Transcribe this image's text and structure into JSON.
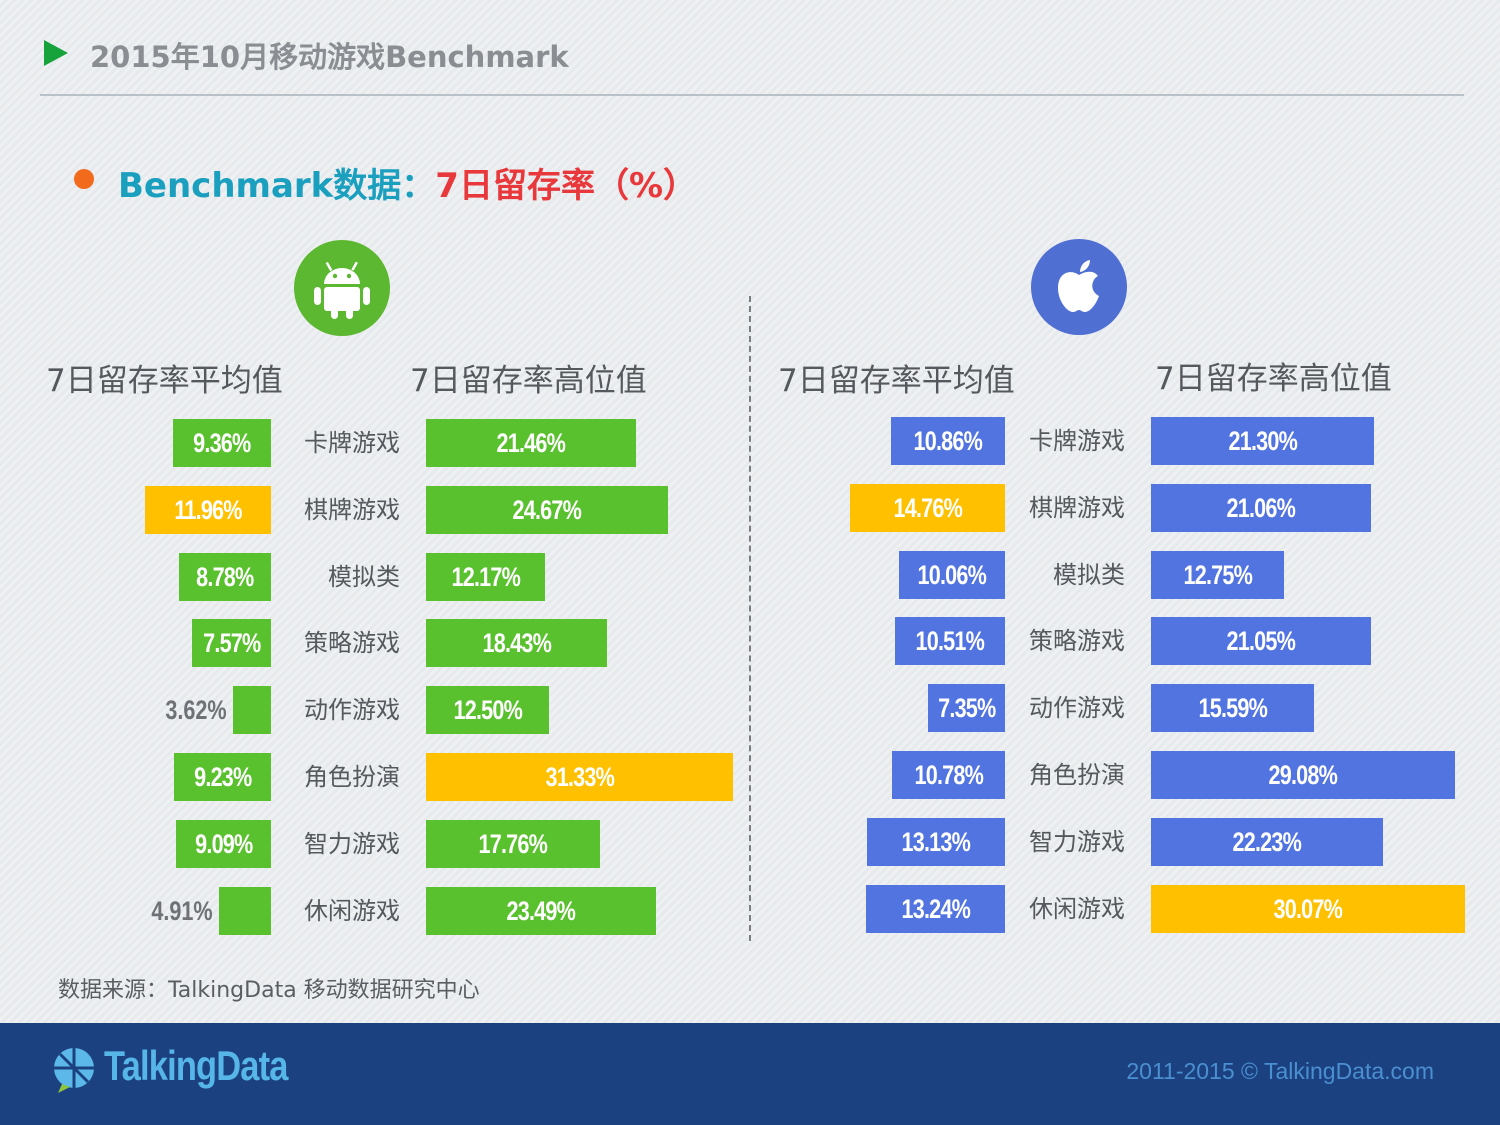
{
  "header": {
    "title": "2015年10月移动游戏Benchmark"
  },
  "subtitle": {
    "part1": "Benchmark数据：",
    "part2": "7日留存率（%）"
  },
  "columns": {
    "android_avg": "7日留存率平均值",
    "android_high": "7日留存率高位值",
    "ios_avg": "7日留存率平均值",
    "ios_high": "7日留存率高位值"
  },
  "icons": {
    "android": "android-icon",
    "ios": "apple-icon"
  },
  "colors": {
    "android_bar": "#5ac12e",
    "ios_bar": "#5274e0",
    "highlight": "#ffc000"
  },
  "chart_data": [
    {
      "type": "bar",
      "platform": "Android",
      "categories": [
        "卡牌游戏",
        "棋牌游戏",
        "模拟类",
        "策略游戏",
        "动作游戏",
        "角色扮演",
        "智力游戏",
        "休闲游戏"
      ],
      "series": [
        {
          "name": "7日留存率平均值",
          "values": [
            9.36,
            11.96,
            8.78,
            7.57,
            3.62,
            9.23,
            9.09,
            4.91
          ],
          "labels": [
            "9.36%",
            "11.96%",
            "8.78%",
            "7.57%",
            "3.62%",
            "9.23%",
            "9.09%",
            "4.91%"
          ],
          "highlight_index": 1
        },
        {
          "name": "7日留存率高位值",
          "values": [
            21.46,
            24.67,
            12.17,
            18.43,
            12.5,
            31.33,
            17.76,
            23.49
          ],
          "labels": [
            "21.46%",
            "24.67%",
            "12.17%",
            "18.43%",
            "12.50%",
            "31.33%",
            "17.76%",
            "23.49%"
          ],
          "highlight_index": 5
        }
      ]
    },
    {
      "type": "bar",
      "platform": "iOS",
      "categories": [
        "卡牌游戏",
        "棋牌游戏",
        "模拟类",
        "策略游戏",
        "动作游戏",
        "角色扮演",
        "智力游戏",
        "休闲游戏"
      ],
      "series": [
        {
          "name": "7日留存率平均值",
          "values": [
            10.86,
            14.76,
            10.06,
            10.51,
            7.35,
            10.78,
            13.13,
            13.24
          ],
          "labels": [
            "10.86%",
            "14.76%",
            "10.06%",
            "10.51%",
            "7.35%",
            "10.78%",
            "13.13%",
            "13.24%"
          ],
          "highlight_index": 1
        },
        {
          "name": "7日留存率高位值",
          "values": [
            21.3,
            21.06,
            12.75,
            21.05,
            15.59,
            29.08,
            22.23,
            30.07
          ],
          "labels": [
            "21.30%",
            "21.06%",
            "12.75%",
            "21.05%",
            "15.59%",
            "29.08%",
            "22.23%",
            "30.07%"
          ],
          "highlight_index": 7
        }
      ]
    }
  ],
  "source": "数据来源：TalkingData 移动数据研究中心",
  "footer": {
    "brand": "TalkingData",
    "copyright": "2011-2015 © TalkingData.com"
  }
}
